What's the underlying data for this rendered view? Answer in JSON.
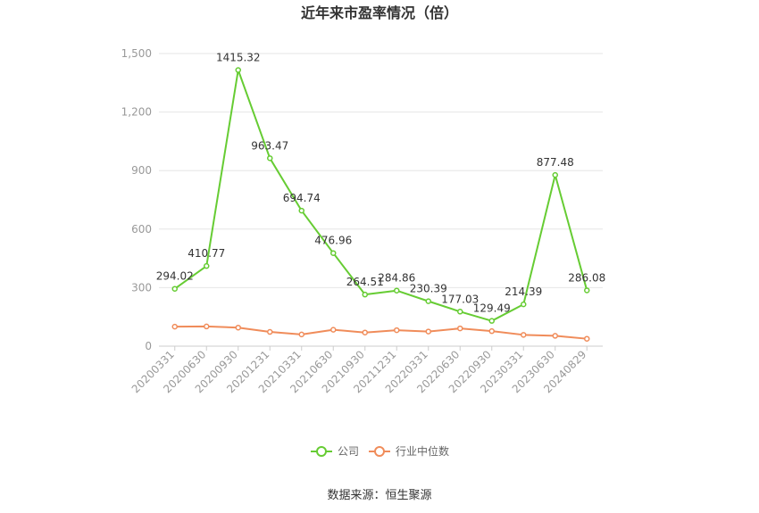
{
  "chart_data": {
    "type": "line",
    "title": "近年来市盈率情况（倍）",
    "categories": [
      "20200331",
      "20200630",
      "20200930",
      "20201231",
      "20210331",
      "20210630",
      "20210930",
      "20211231",
      "20220331",
      "20220630",
      "20220930",
      "20230331",
      "20230630",
      "20240829"
    ],
    "series": [
      {
        "name": "公司",
        "color": "#66cc33",
        "values": [
          294.02,
          410.77,
          1415.32,
          963.47,
          694.74,
          476.96,
          264.51,
          284.86,
          230.39,
          177.03,
          129.49,
          214.39,
          877.48,
          286.08
        ],
        "labels": [
          "294.02",
          "410.77",
          "1415.32",
          "963.47",
          "694.74",
          "476.96",
          "264.51",
          "284.86",
          "230.39",
          "177.03",
          "129.49",
          "214.39",
          "877.48",
          "286.08"
        ]
      },
      {
        "name": "行业中位数",
        "color": "#f08c5a",
        "values": [
          100,
          101,
          95,
          73,
          60,
          84,
          70,
          82,
          75,
          91,
          77,
          58,
          53,
          38
        ]
      }
    ],
    "ylim": [
      0,
      1500
    ],
    "yticks": [
      0,
      300,
      600,
      900,
      1200,
      1500
    ],
    "ytick_labels": [
      "0",
      "300",
      "600",
      "900",
      "1,200",
      "1,500"
    ],
    "grid": true,
    "legend_position": "bottom-center"
  },
  "source": "数据来源：恒生聚源"
}
